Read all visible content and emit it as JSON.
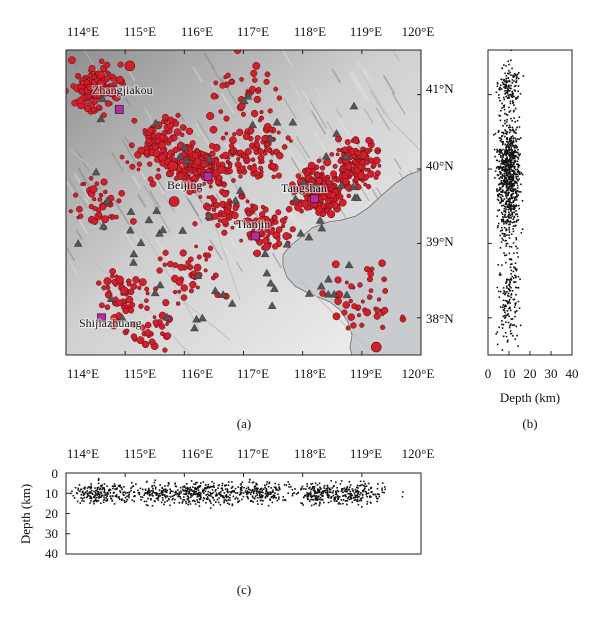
{
  "panels": {
    "a": {
      "label": "(a)",
      "lon_ticks": [
        "114°E",
        "115°E",
        "116°E",
        "117°E",
        "118°E",
        "119°E",
        "120°E"
      ],
      "lat_ticks": [
        "41°N",
        "40°N",
        "39°N",
        "38°N"
      ],
      "lon_range": [
        114,
        120
      ],
      "lat_range": [
        37.5,
        41.6
      ],
      "cities": [
        {
          "name": "Zhangjiakou",
          "lon": 114.9,
          "lat": 40.8
        },
        {
          "name": "Beijing",
          "lon": 116.4,
          "lat": 39.9
        },
        {
          "name": "Tangshan",
          "lon": 118.2,
          "lat": 39.6
        },
        {
          "name": "Tianjin",
          "lon": 117.2,
          "lat": 39.1
        },
        {
          "name": "Shijiazhuang",
          "lon": 114.6,
          "lat": 38.0
        }
      ],
      "colors": {
        "quake_fill": "#d21f2b",
        "quake_stroke": "#5a0c12",
        "city_marker": "#b0309a",
        "station": "#555555",
        "sea": "#c9cccf",
        "terrain": "#b9b9b9"
      }
    },
    "b": {
      "label": "(b)",
      "x_ticks": [
        "0",
        "10",
        "20",
        "30",
        "40"
      ],
      "x_range": [
        0,
        40
      ],
      "xlabel": "Depth (km)"
    },
    "c": {
      "label": "(c)",
      "x_ticks": [
        "114°E",
        "115°E",
        "116°E",
        "117°E",
        "118°E",
        "119°E",
        "120°E"
      ],
      "y_ticks": [
        "0",
        "10",
        "20",
        "30",
        "40"
      ],
      "y_range": [
        0,
        40
      ],
      "ylabel": "Depth (km)"
    }
  }
}
